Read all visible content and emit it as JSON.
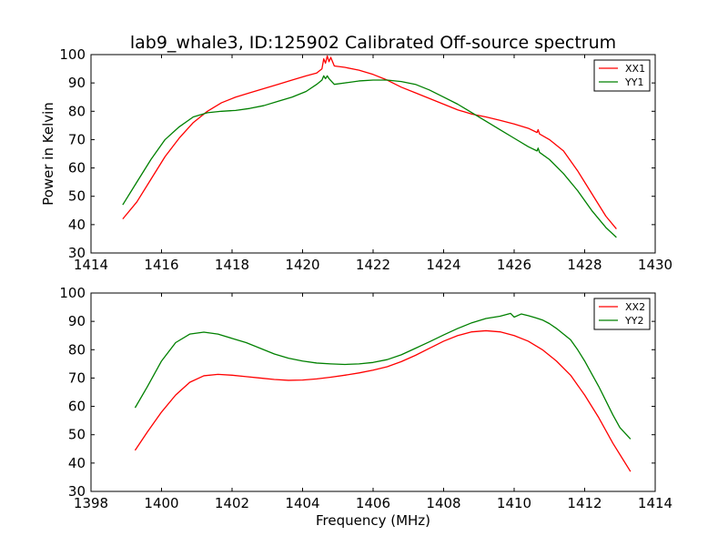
{
  "figure": {
    "title": "lab9_whale3, ID:125902 Calibrated Off-source spectrum",
    "xlabel": "Frequency (MHz)",
    "ylabel": "Power in Kelvin"
  },
  "colors": {
    "XX": "#ff0000",
    "YY": "#008000"
  },
  "chart_data": [
    {
      "type": "line",
      "title": "lab9_whale3, ID:125902 Calibrated Off-source spectrum",
      "xlabel": "",
      "ylabel": "Power in Kelvin",
      "xlim": [
        1414,
        1430
      ],
      "ylim": [
        30,
        100
      ],
      "xticks": [
        "1414",
        "1416",
        "1418",
        "1420",
        "1422",
        "1424",
        "1426",
        "1428",
        "1430"
      ],
      "yticks": [
        "30",
        "40",
        "50",
        "60",
        "70",
        "80",
        "90",
        "100"
      ],
      "legend": "top-right",
      "grid": false,
      "series": [
        {
          "name": "XX1",
          "color": "#ff0000",
          "points": [
            [
              1414.9,
              42
            ],
            [
              1415.3,
              48
            ],
            [
              1415.7,
              56
            ],
            [
              1416.1,
              64
            ],
            [
              1416.5,
              70.5
            ],
            [
              1416.9,
              76
            ],
            [
              1417.3,
              80
            ],
            [
              1417.7,
              83
            ],
            [
              1418.1,
              85
            ],
            [
              1418.5,
              86.5
            ],
            [
              1418.9,
              88
            ],
            [
              1419.3,
              89.5
            ],
            [
              1419.7,
              91
            ],
            [
              1420.1,
              92.5
            ],
            [
              1420.4,
              93.5
            ],
            [
              1420.55,
              95
            ],
            [
              1420.6,
              98.5
            ],
            [
              1420.65,
              97
            ],
            [
              1420.7,
              99.5
            ],
            [
              1420.75,
              97.5
            ],
            [
              1420.8,
              99
            ],
            [
              1420.9,
              96
            ],
            [
              1421.2,
              95.5
            ],
            [
              1421.6,
              94.5
            ],
            [
              1422.0,
              93
            ],
            [
              1422.4,
              91
            ],
            [
              1422.8,
              88.5
            ],
            [
              1423.2,
              86.5
            ],
            [
              1423.6,
              84.5
            ],
            [
              1424.0,
              82.5
            ],
            [
              1424.4,
              80.5
            ],
            [
              1424.8,
              79
            ],
            [
              1425.2,
              78
            ],
            [
              1425.6,
              76.8
            ],
            [
              1426.0,
              75.5
            ],
            [
              1426.4,
              74
            ],
            [
              1426.65,
              72.5
            ],
            [
              1426.68,
              73.5
            ],
            [
              1426.72,
              72
            ],
            [
              1427.0,
              70
            ],
            [
              1427.4,
              66
            ],
            [
              1427.8,
              59
            ],
            [
              1428.2,
              51
            ],
            [
              1428.6,
              43
            ],
            [
              1428.9,
              38.5
            ]
          ]
        },
        {
          "name": "YY1",
          "color": "#008000",
          "points": [
            [
              1414.9,
              47
            ],
            [
              1415.3,
              55
            ],
            [
              1415.7,
              63
            ],
            [
              1416.1,
              70
            ],
            [
              1416.5,
              74.5
            ],
            [
              1416.9,
              78
            ],
            [
              1417.3,
              79.5
            ],
            [
              1417.7,
              80
            ],
            [
              1418.1,
              80.3
            ],
            [
              1418.5,
              81
            ],
            [
              1418.9,
              82
            ],
            [
              1419.3,
              83.5
            ],
            [
              1419.7,
              85
            ],
            [
              1420.1,
              87
            ],
            [
              1420.4,
              89.5
            ],
            [
              1420.55,
              91
            ],
            [
              1420.6,
              92.5
            ],
            [
              1420.65,
              91.5
            ],
            [
              1420.7,
              92.5
            ],
            [
              1420.75,
              91.5
            ],
            [
              1420.9,
              89.5
            ],
            [
              1421.2,
              90
            ],
            [
              1421.6,
              90.7
            ],
            [
              1422.0,
              91
            ],
            [
              1422.4,
              91
            ],
            [
              1422.8,
              90.5
            ],
            [
              1423.2,
              89.5
            ],
            [
              1423.6,
              87.5
            ],
            [
              1424.0,
              85
            ],
            [
              1424.4,
              82.5
            ],
            [
              1424.8,
              79.5
            ],
            [
              1425.2,
              76.5
            ],
            [
              1425.6,
              73.5
            ],
            [
              1426.0,
              70.5
            ],
            [
              1426.4,
              67.5
            ],
            [
              1426.65,
              66
            ],
            [
              1426.68,
              67
            ],
            [
              1426.72,
              65.5
            ],
            [
              1427.0,
              63
            ],
            [
              1427.4,
              58
            ],
            [
              1427.8,
              52
            ],
            [
              1428.2,
              45
            ],
            [
              1428.6,
              39
            ],
            [
              1428.9,
              35.5
            ]
          ]
        }
      ]
    },
    {
      "type": "line",
      "title": "",
      "xlabel": "Frequency (MHz)",
      "ylabel": "",
      "xlim": [
        1398,
        1414
      ],
      "ylim": [
        30,
        100
      ],
      "xticks": [
        "1398",
        "1400",
        "1402",
        "1404",
        "1406",
        "1408",
        "1410",
        "1412",
        "1414"
      ],
      "yticks": [
        "30",
        "40",
        "50",
        "60",
        "70",
        "80",
        "90",
        "100"
      ],
      "legend": "top-right",
      "grid": false,
      "series": [
        {
          "name": "XX2",
          "color": "#ff0000",
          "points": [
            [
              1399.25,
              44.5
            ],
            [
              1399.6,
              51
            ],
            [
              1400.0,
              58
            ],
            [
              1400.4,
              64
            ],
            [
              1400.8,
              68.5
            ],
            [
              1401.2,
              70.8
            ],
            [
              1401.6,
              71.3
            ],
            [
              1402.0,
              71
            ],
            [
              1402.4,
              70.5
            ],
            [
              1402.8,
              70
            ],
            [
              1403.2,
              69.5
            ],
            [
              1403.6,
              69.2
            ],
            [
              1404.0,
              69.3
            ],
            [
              1404.4,
              69.7
            ],
            [
              1404.8,
              70.3
            ],
            [
              1405.2,
              71
            ],
            [
              1405.6,
              71.8
            ],
            [
              1406.0,
              72.8
            ],
            [
              1406.4,
              74
            ],
            [
              1406.8,
              75.8
            ],
            [
              1407.2,
              78
            ],
            [
              1407.6,
              80.5
            ],
            [
              1408.0,
              83
            ],
            [
              1408.4,
              85
            ],
            [
              1408.8,
              86.3
            ],
            [
              1409.2,
              86.7
            ],
            [
              1409.6,
              86.3
            ],
            [
              1410.0,
              85
            ],
            [
              1410.4,
              83
            ],
            [
              1410.8,
              80
            ],
            [
              1411.2,
              76
            ],
            [
              1411.6,
              71
            ],
            [
              1412.0,
              64
            ],
            [
              1412.4,
              56
            ],
            [
              1412.8,
              47
            ],
            [
              1413.1,
              41
            ],
            [
              1413.3,
              37
            ]
          ]
        },
        {
          "name": "YY2",
          "color": "#008000",
          "points": [
            [
              1399.25,
              59.5
            ],
            [
              1399.6,
              67
            ],
            [
              1400.0,
              76
            ],
            [
              1400.4,
              82.5
            ],
            [
              1400.8,
              85.5
            ],
            [
              1401.2,
              86.2
            ],
            [
              1401.6,
              85.5
            ],
            [
              1402.0,
              84
            ],
            [
              1402.4,
              82.5
            ],
            [
              1402.8,
              80.5
            ],
            [
              1403.2,
              78.5
            ],
            [
              1403.6,
              77
            ],
            [
              1404.0,
              76
            ],
            [
              1404.4,
              75.3
            ],
            [
              1404.8,
              75
            ],
            [
              1405.2,
              74.8
            ],
            [
              1405.6,
              75
            ],
            [
              1406.0,
              75.5
            ],
            [
              1406.4,
              76.5
            ],
            [
              1406.8,
              78.2
            ],
            [
              1407.2,
              80.5
            ],
            [
              1407.6,
              82.8
            ],
            [
              1408.0,
              85.2
            ],
            [
              1408.4,
              87.5
            ],
            [
              1408.8,
              89.5
            ],
            [
              1409.2,
              91
            ],
            [
              1409.6,
              91.8
            ],
            [
              1409.9,
              92.8
            ],
            [
              1410.0,
              91.5
            ],
            [
              1410.2,
              92.6
            ],
            [
              1410.4,
              92
            ],
            [
              1410.6,
              91.3
            ],
            [
              1410.8,
              90.5
            ],
            [
              1411.0,
              89.2
            ],
            [
              1411.2,
              87.5
            ],
            [
              1411.4,
              85.5
            ],
            [
              1411.6,
              83.5
            ],
            [
              1411.8,
              80
            ],
            [
              1412.0,
              76
            ],
            [
              1412.2,
              71.5
            ],
            [
              1412.4,
              67
            ],
            [
              1412.6,
              62
            ],
            [
              1412.8,
              57
            ],
            [
              1413.0,
              52.5
            ],
            [
              1413.3,
              48.5
            ]
          ]
        }
      ]
    }
  ]
}
